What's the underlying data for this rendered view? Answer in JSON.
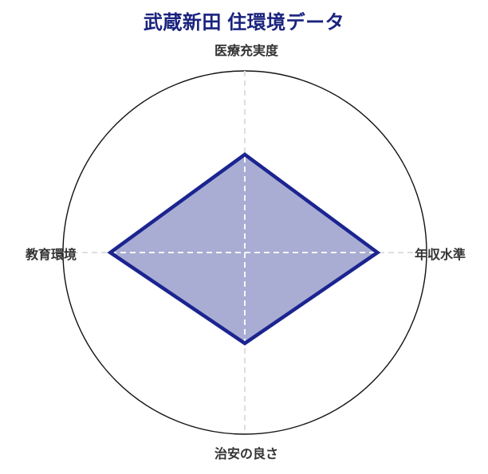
{
  "title": "武蔵新田 住環境データ",
  "colors": {
    "title_text": "#1a237e",
    "axis_label_text": "#333333",
    "outer_circle_stroke": "#111111",
    "grid_dash_outside": "#dedede",
    "grid_dash_inside": "#ffffff",
    "polygon_stroke": "#1b2490",
    "polygon_fill": "#1e288c",
    "polygon_fill_opacity": 0.38,
    "background": "#ffffff"
  },
  "chart_data": {
    "type": "radar",
    "title": "武蔵新田 住環境データ",
    "categories": [
      "医療充実度",
      "年収水準",
      "治安の良さ",
      "教育環境"
    ],
    "category_positions": [
      "top",
      "right",
      "bottom",
      "left"
    ],
    "series": [
      {
        "name": "武蔵新田",
        "values": [
          0.54,
          0.73,
          0.5,
          0.74
        ]
      }
    ],
    "rmax": 1,
    "r_ticks_labeled": false,
    "value_note": "no radial tick labels shown; values estimated as fraction of outer circle radius",
    "legend": "none",
    "grid": "single outer circle plus dashed cross axis lines (light gray outside polygon, white inside polygon)"
  }
}
